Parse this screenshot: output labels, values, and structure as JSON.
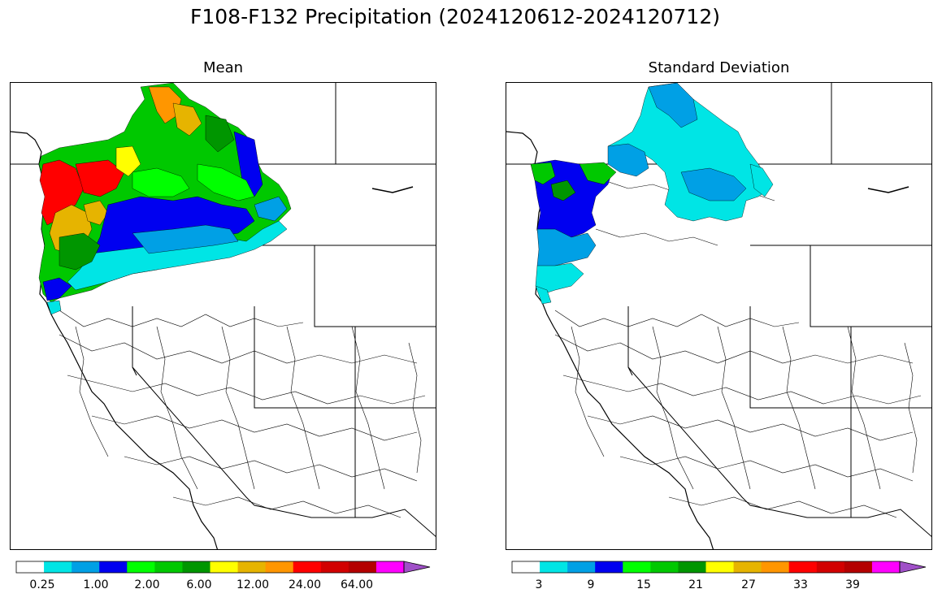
{
  "title": "F108-F132 Precipitation (2024120612-2024120712)",
  "panels": [
    {
      "title": "Mean"
    },
    {
      "title": "Standard Deviation"
    }
  ],
  "colorbar_colors": [
    "#ffffff",
    "#00e5e5",
    "#00a0e5",
    "#0000f0",
    "#00ff00",
    "#00c800",
    "#009600",
    "#ffff00",
    "#e6b400",
    "#ff9600",
    "#ff0000",
    "#d20000",
    "#b40000",
    "#ff00ff",
    "#a050c8"
  ],
  "mean_colorbar": {
    "tick_labels": [
      "0.25",
      "1.00",
      "2.00",
      "6.00",
      "12.00",
      "24.00",
      "64.00"
    ]
  },
  "std_colorbar": {
    "tick_labels": [
      "3",
      "9",
      "15",
      "21",
      "27",
      "33",
      "39"
    ]
  },
  "legend_notes": {
    "extend": "max"
  }
}
